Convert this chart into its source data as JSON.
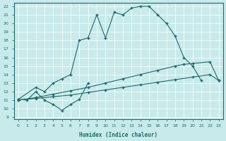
{
  "bg_color": "#c8eaea",
  "grid_color": "#ffffff",
  "line_color": "#1a6b6b",
  "xlabel": "Humidex (Indice chaleur)",
  "xlim": [
    -0.5,
    23.5
  ],
  "ylim": [
    8.8,
    22.4
  ],
  "xticks": [
    0,
    1,
    2,
    3,
    4,
    5,
    6,
    7,
    8,
    9,
    10,
    11,
    12,
    13,
    14,
    15,
    16,
    17,
    18,
    19,
    20,
    21,
    22,
    23
  ],
  "yticks": [
    9,
    10,
    11,
    12,
    13,
    14,
    15,
    16,
    17,
    18,
    19,
    20,
    21,
    22
  ],
  "curve1_x": [
    0,
    2,
    3,
    4,
    5,
    6,
    7,
    8,
    9,
    10,
    11,
    12,
    13,
    14,
    15,
    16,
    17,
    18,
    19,
    20,
    21
  ],
  "curve1_y": [
    11.1,
    12.5,
    12.0,
    13.0,
    13.5,
    14.0,
    18.0,
    18.3,
    21.0,
    18.3,
    21.3,
    21.0,
    21.8,
    22.0,
    22.0,
    21.0,
    20.0,
    18.5,
    16.0,
    15.0,
    13.3
  ],
  "curve2_x": [
    0,
    1,
    2,
    3,
    4,
    5,
    6,
    7,
    8
  ],
  "curve2_y": [
    11.1,
    11.0,
    12.0,
    11.0,
    10.5,
    9.8,
    10.5,
    11.1,
    13.0
  ],
  "curve3_x": [
    0,
    2,
    4,
    6,
    8,
    10,
    12,
    14,
    16,
    18,
    19,
    20,
    22,
    23
  ],
  "curve3_y": [
    11.0,
    11.3,
    11.7,
    12.1,
    12.5,
    13.0,
    13.5,
    14.0,
    14.5,
    15.0,
    15.2,
    15.3,
    15.5,
    13.3
  ],
  "curve4_x": [
    0,
    2,
    4,
    6,
    8,
    10,
    12,
    14,
    16,
    18,
    20,
    22,
    23
  ],
  "curve4_y": [
    11.0,
    11.2,
    11.4,
    11.6,
    11.9,
    12.2,
    12.5,
    12.8,
    13.1,
    13.4,
    13.7,
    14.0,
    13.3
  ]
}
